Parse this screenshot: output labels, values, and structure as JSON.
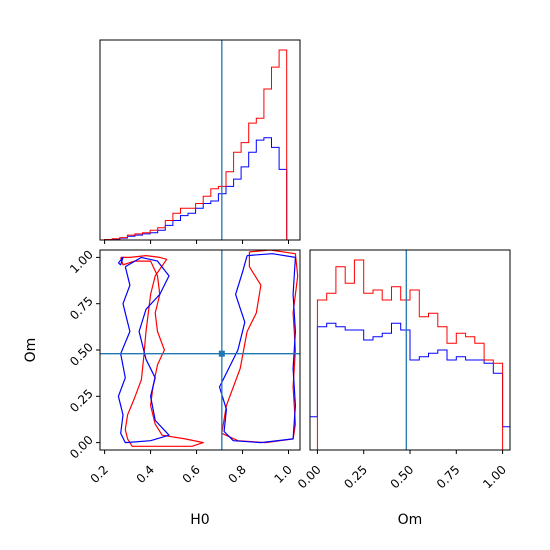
{
  "chart_data": {
    "type": "corner",
    "parameters": [
      "H0",
      "Om"
    ],
    "truth": {
      "H0": 0.71,
      "Om": 0.48
    },
    "colors": {
      "run_a": "#ff0000",
      "run_b": "#0000ff",
      "truth": "#1f77b4"
    },
    "ranges": {
      "H0": [
        0.18,
        1.05
      ],
      "Om": [
        -0.04,
        1.04
      ]
    },
    "ticks": {
      "H0": {
        "values": [
          0.2,
          0.4,
          0.6,
          0.8,
          1.0
        ],
        "labels": [
          "0.2",
          "0.4",
          "0.6",
          "0.8",
          "1.0"
        ]
      },
      "Om": {
        "values": [
          0.0,
          0.25,
          0.5,
          0.75,
          1.0
        ],
        "labels": [
          "0.00",
          "0.25",
          "0.50",
          "0.75",
          "1.00"
        ]
      }
    },
    "xlabel_bottom_left": "H0",
    "xlabel_bottom_right": "Om",
    "ylabel_left": "Om",
    "hist_H0": {
      "edges": [
        0.2,
        0.233,
        0.266,
        0.299,
        0.332,
        0.365,
        0.398,
        0.431,
        0.464,
        0.497,
        0.53,
        0.563,
        0.596,
        0.629,
        0.662,
        0.695,
        0.728,
        0.761,
        0.794,
        0.827,
        0.86,
        0.893,
        0.926,
        0.959,
        0.992,
        1.025
      ],
      "red": [
        0.002,
        0.005,
        0.01,
        0.02,
        0.025,
        0.03,
        0.04,
        0.05,
        0.08,
        0.11,
        0.13,
        0.13,
        0.15,
        0.18,
        0.21,
        0.22,
        0.28,
        0.36,
        0.4,
        0.48,
        0.5,
        0.62,
        0.71,
        0.78,
        0.0
      ],
      "blue": [
        0.002,
        0.004,
        0.008,
        0.015,
        0.02,
        0.025,
        0.03,
        0.04,
        0.06,
        0.08,
        0.1,
        0.11,
        0.13,
        0.15,
        0.16,
        0.19,
        0.22,
        0.25,
        0.3,
        0.36,
        0.41,
        0.42,
        0.38,
        0.29,
        0.0
      ]
    },
    "hist_Om": {
      "edges": [
        -0.04,
        0.0,
        0.05,
        0.1,
        0.15,
        0.2,
        0.25,
        0.3,
        0.35,
        0.4,
        0.45,
        0.5,
        0.55,
        0.6,
        0.65,
        0.7,
        0.75,
        0.8,
        0.85,
        0.9,
        0.95,
        1.0,
        1.04
      ],
      "red": [
        0.0,
        0.45,
        0.47,
        0.55,
        0.5,
        0.57,
        0.47,
        0.48,
        0.45,
        0.49,
        0.45,
        0.48,
        0.4,
        0.41,
        0.37,
        0.32,
        0.35,
        0.34,
        0.32,
        0.27,
        0.26,
        0.0
      ],
      "blue": [
        0.1,
        0.37,
        0.38,
        0.37,
        0.36,
        0.36,
        0.33,
        0.34,
        0.35,
        0.38,
        0.36,
        0.27,
        0.28,
        0.29,
        0.3,
        0.27,
        0.28,
        0.27,
        0.27,
        0.26,
        0.23,
        0.07
      ]
    },
    "contours": [
      {
        "color": "red",
        "points": [
          [
            0.27,
            1.0
          ],
          [
            0.31,
            1.0
          ],
          [
            0.38,
            1.01
          ],
          [
            0.44,
            1.0
          ],
          [
            0.47,
            0.99
          ],
          [
            0.42,
            0.9
          ],
          [
            0.4,
            0.8
          ],
          [
            0.38,
            0.6
          ],
          [
            0.37,
            0.46
          ],
          [
            0.36,
            0.34
          ],
          [
            0.33,
            0.24
          ],
          [
            0.3,
            0.15
          ],
          [
            0.29,
            0.07
          ],
          [
            0.3,
            0.02
          ],
          [
            0.32,
            -0.02
          ],
          [
            0.45,
            -0.02
          ],
          [
            0.58,
            -0.02
          ],
          [
            0.63,
            0.0
          ],
          [
            0.55,
            0.02
          ],
          [
            0.45,
            0.04
          ],
          [
            0.42,
            0.1
          ],
          [
            0.4,
            0.2
          ],
          [
            0.41,
            0.3
          ],
          [
            0.43,
            0.42
          ],
          [
            0.46,
            0.5
          ],
          [
            0.43,
            0.6
          ],
          [
            0.42,
            0.7
          ],
          [
            0.44,
            0.8
          ],
          [
            0.43,
            0.9
          ],
          [
            0.4,
            0.98
          ],
          [
            0.33,
            0.98
          ],
          [
            0.28,
            0.96
          ],
          [
            0.27,
            1.0
          ]
        ]
      },
      {
        "color": "red",
        "points": [
          [
            0.83,
            1.03
          ],
          [
            0.92,
            1.04
          ],
          [
            1.03,
            1.02
          ],
          [
            1.04,
            0.9
          ],
          [
            1.02,
            0.7
          ],
          [
            1.03,
            0.5
          ],
          [
            1.02,
            0.3
          ],
          [
            1.03,
            0.1
          ],
          [
            1.02,
            0.02
          ],
          [
            0.9,
            0.0
          ],
          [
            0.78,
            0.01
          ],
          [
            0.71,
            0.05
          ],
          [
            0.73,
            0.2
          ],
          [
            0.76,
            0.3
          ],
          [
            0.79,
            0.4
          ],
          [
            0.82,
            0.6
          ],
          [
            0.86,
            0.7
          ],
          [
            0.88,
            0.85
          ],
          [
            0.83,
            0.95
          ],
          [
            0.83,
            1.03
          ]
        ]
      },
      {
        "color": "blue",
        "points": [
          [
            0.29,
            0.95
          ],
          [
            0.31,
            0.85
          ],
          [
            0.28,
            0.75
          ],
          [
            0.31,
            0.6
          ],
          [
            0.27,
            0.48
          ],
          [
            0.29,
            0.35
          ],
          [
            0.26,
            0.25
          ],
          [
            0.28,
            0.15
          ],
          [
            0.27,
            0.05
          ],
          [
            0.29,
            0.0
          ],
          [
            0.4,
            0.01
          ],
          [
            0.48,
            0.04
          ],
          [
            0.42,
            0.12
          ],
          [
            0.4,
            0.25
          ],
          [
            0.42,
            0.35
          ],
          [
            0.38,
            0.45
          ],
          [
            0.35,
            0.6
          ],
          [
            0.38,
            0.72
          ],
          [
            0.44,
            0.8
          ],
          [
            0.48,
            0.9
          ],
          [
            0.43,
            0.98
          ],
          [
            0.36,
            1.0
          ],
          [
            0.29,
            0.95
          ]
        ]
      },
      {
        "color": "blue",
        "points": [
          [
            0.82,
            1.01
          ],
          [
            0.93,
            1.02
          ],
          [
            1.03,
            1.0
          ],
          [
            1.02,
            0.8
          ],
          [
            1.03,
            0.6
          ],
          [
            1.02,
            0.4
          ],
          [
            1.03,
            0.2
          ],
          [
            1.02,
            0.02
          ],
          [
            0.88,
            0.0
          ],
          [
            0.76,
            0.01
          ],
          [
            0.72,
            0.06
          ],
          [
            0.73,
            0.18
          ],
          [
            0.7,
            0.3
          ],
          [
            0.74,
            0.4
          ],
          [
            0.78,
            0.5
          ],
          [
            0.81,
            0.65
          ],
          [
            0.77,
            0.8
          ],
          [
            0.8,
            0.92
          ],
          [
            0.82,
            1.01
          ]
        ]
      },
      {
        "color": "blue",
        "points": [
          [
            0.26,
            0.97
          ],
          [
            0.28,
            1.0
          ],
          [
            0.27,
            0.96
          ],
          [
            0.26,
            0.97
          ]
        ]
      }
    ]
  }
}
